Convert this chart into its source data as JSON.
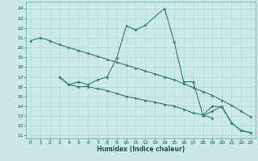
{
  "xlabel": "Humidex (Indice chaleur)",
  "bg_color": "#cce8e8",
  "grid_color": "#b0d8d8",
  "line_color": "#2e7d6e",
  "xlim": [
    -0.5,
    23.5
  ],
  "ylim": [
    10.7,
    24.7
  ],
  "yticks": [
    11,
    12,
    13,
    14,
    15,
    16,
    17,
    18,
    19,
    20,
    21,
    22,
    23,
    24
  ],
  "xticks": [
    0,
    1,
    2,
    3,
    4,
    5,
    6,
    7,
    8,
    9,
    10,
    11,
    12,
    13,
    14,
    15,
    16,
    17,
    18,
    19,
    20,
    21,
    22,
    23
  ],
  "series": [
    {
      "x": [
        0,
        1,
        2,
        3,
        4,
        5,
        6,
        7,
        8,
        9,
        10,
        11,
        12,
        13,
        14,
        15,
        16,
        17,
        18,
        19,
        20,
        21,
        22,
        23
      ],
      "y": [
        20.7,
        21.0,
        20.7,
        20.3,
        20.0,
        19.7,
        19.4,
        19.1,
        18.8,
        18.5,
        18.2,
        17.9,
        17.6,
        17.3,
        17.0,
        16.7,
        16.3,
        15.9,
        15.5,
        15.1,
        14.6,
        14.1,
        13.5,
        12.9
      ]
    },
    {
      "x": [
        3,
        4,
        5,
        6,
        7,
        8,
        9,
        10,
        11,
        12,
        14,
        15,
        16,
        17,
        18,
        19
      ],
      "y": [
        17.0,
        16.2,
        16.5,
        16.2,
        16.7,
        17.0,
        18.9,
        22.2,
        21.8,
        22.3,
        24.0,
        20.6,
        16.5,
        16.5,
        13.1,
        12.8
      ]
    },
    {
      "x": [
        3,
        4,
        5,
        6,
        7,
        8,
        9,
        10,
        11,
        12,
        13,
        14,
        15,
        16,
        17,
        18,
        19,
        20,
        21,
        22,
        23
      ],
      "y": [
        17.0,
        16.2,
        16.0,
        16.0,
        15.8,
        15.6,
        15.3,
        15.0,
        14.8,
        14.6,
        14.4,
        14.2,
        14.0,
        13.7,
        13.3,
        13.1,
        14.0,
        13.9,
        12.3,
        11.5,
        11.3
      ]
    },
    {
      "x": [
        18,
        19,
        20,
        21,
        22,
        23
      ],
      "y": [
        13.0,
        13.5,
        14.0,
        12.3,
        11.5,
        11.3
      ]
    }
  ]
}
